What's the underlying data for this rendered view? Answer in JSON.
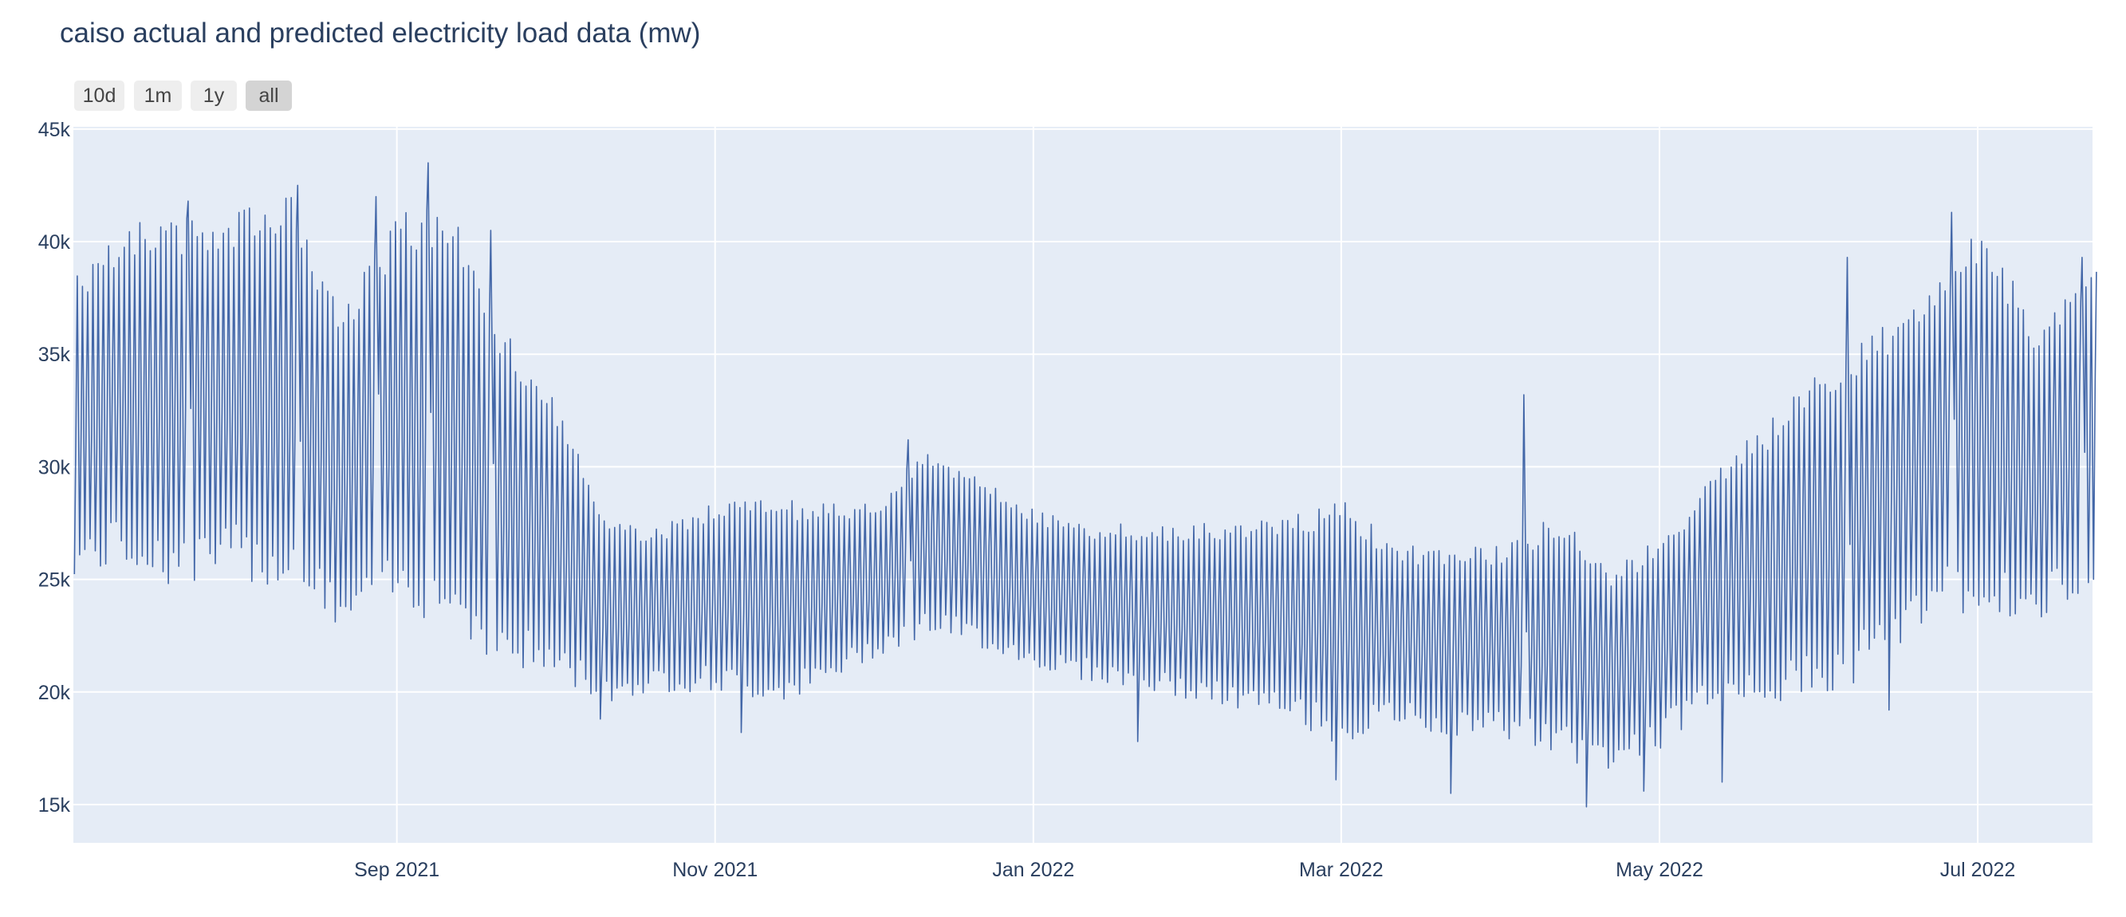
{
  "title": "caiso actual and predicted electricity load data (mw)",
  "range_buttons": [
    {
      "label": "10d",
      "active": false
    },
    {
      "label": "1m",
      "active": false
    },
    {
      "label": "1y",
      "active": false
    },
    {
      "label": "all",
      "active": true
    }
  ],
  "colors": {
    "plot_bg": "#e5ecf6",
    "grid": "#ffffff",
    "line": "#4367a8",
    "text": "#2a3f5f"
  },
  "chart_data": {
    "type": "line",
    "title": "caiso actual and predicted electricity load data (mw)",
    "xlabel": "",
    "ylabel": "",
    "x_range": [
      "2021-07-01",
      "2022-07-23"
    ],
    "ylim": [
      13300,
      45100
    ],
    "y_ticks": [
      15000,
      20000,
      25000,
      30000,
      35000,
      40000,
      45000
    ],
    "y_tick_labels": [
      "15k",
      "20k",
      "25k",
      "30k",
      "35k",
      "40k",
      "45k"
    ],
    "x_ticks": [
      "2021-09-01",
      "2021-11-01",
      "2022-01-01",
      "2022-03-01",
      "2022-05-01",
      "2022-07-01"
    ],
    "x_tick_labels": [
      "Sep 2021",
      "Nov 2021",
      "Jan 2022",
      "Mar 2022",
      "May 2022",
      "Jul 2022"
    ],
    "grid": true,
    "legend": "none",
    "series": [
      {
        "resolution": "daily",
        "dates": [
          "2021-07-01",
          "2021-07-11",
          "2021-07-21",
          "2021-08-01",
          "2021-08-11",
          "2021-08-21",
          "2021-09-01",
          "2021-09-11",
          "2021-09-21",
          "2021-10-01",
          "2021-10-11",
          "2021-10-21",
          "2021-11-01",
          "2021-11-11",
          "2021-11-21",
          "2021-12-01",
          "2021-12-11",
          "2021-12-21",
          "2022-01-01",
          "2022-01-11",
          "2022-01-21",
          "2022-02-01",
          "2022-02-11",
          "2022-02-21",
          "2022-03-01",
          "2022-03-11",
          "2022-03-21",
          "2022-04-01",
          "2022-04-11",
          "2022-04-21",
          "2022-05-01",
          "2022-05-11",
          "2022-05-21",
          "2022-06-01",
          "2022-06-11",
          "2022-06-21",
          "2022-07-01",
          "2022-07-11",
          "2022-07-23"
        ],
        "daily_min": [
          25000,
          25500,
          24500,
          25000,
          24500,
          22500,
          23500,
          23000,
          21000,
          20500,
          19500,
          20000,
          20000,
          19500,
          20000,
          21500,
          22500,
          22000,
          21000,
          20500,
          20000,
          19500,
          19000,
          18500,
          17500,
          18500,
          18000,
          18000,
          17000,
          16500,
          17500,
          19500,
          19500,
          19500,
          21000,
          23000,
          23500,
          22500,
          25000
        ],
        "daily_max": [
          38500,
          41000,
          41000,
          41500,
          42000,
          37000,
          41500,
          41500,
          36000,
          33000,
          27500,
          27500,
          28500,
          28500,
          28500,
          28500,
          31000,
          29500,
          28000,
          27500,
          27500,
          27500,
          27500,
          28000,
          28500,
          26500,
          26500,
          26500,
          28000,
          25500,
          27000,
          30000,
          32000,
          34500,
          36000,
          38500,
          41000,
          36500,
          39500
        ],
        "peak_points": [
          {
            "x": "2021-07-23",
            "y": 41800
          },
          {
            "x": "2021-08-13",
            "y": 42500
          },
          {
            "x": "2021-08-28",
            "y": 42000
          },
          {
            "x": "2021-09-07",
            "y": 43500
          },
          {
            "x": "2021-09-19",
            "y": 40500
          },
          {
            "x": "2021-12-08",
            "y": 31200
          },
          {
            "x": "2022-04-05",
            "y": 33200
          },
          {
            "x": "2022-06-06",
            "y": 39300
          },
          {
            "x": "2022-06-26",
            "y": 41300
          },
          {
            "x": "2022-07-21",
            "y": 39300
          }
        ],
        "trough_points": [
          {
            "x": "2021-10-10",
            "y": 18800
          },
          {
            "x": "2021-11-06",
            "y": 18200
          },
          {
            "x": "2022-01-21",
            "y": 17800
          },
          {
            "x": "2022-02-28",
            "y": 16100
          },
          {
            "x": "2022-03-22",
            "y": 15500
          },
          {
            "x": "2022-04-17",
            "y": 14900
          },
          {
            "x": "2022-04-28",
            "y": 15600
          },
          {
            "x": "2022-05-13",
            "y": 16000
          },
          {
            "x": "2022-06-14",
            "y": 19200
          }
        ]
      }
    ]
  }
}
